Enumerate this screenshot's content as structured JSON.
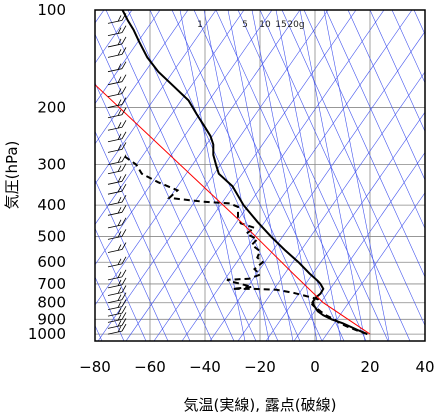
{
  "chart_data": {
    "type": "line",
    "title": "",
    "xlabel": "気温(実線), 露点(破線)",
    "ylabel": "気圧(hPa)",
    "xlim": [
      -80,
      40
    ],
    "ylim": [
      1050,
      100
    ],
    "y_scale": "log",
    "x_ticks": [
      -80,
      -60,
      -40,
      -20,
      0,
      20,
      40
    ],
    "x_tick_labels": [
      "−80",
      "−60",
      "−40",
      "−20",
      "0",
      "20",
      "40"
    ],
    "y_ticks": [
      100,
      200,
      300,
      400,
      500,
      600,
      700,
      800,
      900,
      1000
    ],
    "y_tick_labels": [
      "100",
      "200",
      "300",
      "400",
      "500",
      "600",
      "700",
      "800",
      "900",
      "1000"
    ],
    "mixing_ratio_labels": [
      "1",
      "5",
      "10",
      "15",
      "20g"
    ],
    "mixing_ratio_values": [
      1,
      5,
      10,
      15,
      20
    ],
    "grid": true,
    "series": [
      {
        "style": "solid",
        "color": "#000000",
        "points": [
          [
            19,
            1000
          ],
          [
            16,
            975
          ],
          [
            13,
            950
          ],
          [
            10,
            925
          ],
          [
            6,
            900
          ],
          [
            3,
            875
          ],
          [
            1,
            850
          ],
          [
            0,
            825
          ],
          [
            -1,
            800
          ],
          [
            0,
            775
          ],
          [
            2,
            750
          ],
          [
            3,
            725
          ],
          [
            2,
            700
          ],
          [
            1,
            685
          ],
          [
            -2,
            650
          ],
          [
            -6,
            600
          ],
          [
            -11,
            550
          ],
          [
            -16,
            500
          ],
          [
            -21,
            450
          ],
          [
            -26,
            400
          ],
          [
            -30,
            350
          ],
          [
            -35,
            320
          ],
          [
            -36,
            300
          ],
          [
            -37,
            280
          ],
          [
            -37,
            260
          ],
          [
            -38,
            245
          ],
          [
            -40,
            230
          ],
          [
            -43,
            210
          ],
          [
            -46,
            190
          ],
          [
            -52,
            170
          ],
          [
            -57,
            155
          ],
          [
            -61,
            140
          ],
          [
            -64,
            125
          ],
          [
            -66,
            115
          ],
          [
            -68,
            108
          ],
          [
            -70,
            100
          ]
        ]
      },
      {
        "style": "dashed",
        "color": "#000000",
        "points": [
          [
            19,
            1000
          ],
          [
            16,
            980
          ],
          [
            12,
            950
          ],
          [
            9,
            925
          ],
          [
            7,
            900
          ],
          [
            4,
            875
          ],
          [
            2,
            850
          ],
          [
            0,
            825
          ],
          [
            -1,
            810
          ],
          [
            0,
            790
          ],
          [
            1,
            780
          ],
          [
            -4,
            760
          ],
          [
            -8,
            745
          ],
          [
            -14,
            730
          ],
          [
            -22,
            725
          ],
          [
            -30,
            725
          ],
          [
            -23,
            715
          ],
          [
            -27,
            700
          ],
          [
            -30,
            690
          ],
          [
            -32,
            680
          ],
          [
            -24,
            675
          ],
          [
            -20,
            655
          ],
          [
            -22,
            630
          ],
          [
            -19,
            600
          ],
          [
            -21,
            580
          ],
          [
            -20,
            555
          ],
          [
            -23,
            530
          ],
          [
            -21,
            510
          ],
          [
            -25,
            490
          ],
          [
            -22,
            470
          ],
          [
            -27,
            455
          ],
          [
            -28,
            435
          ],
          [
            -28,
            405
          ],
          [
            -31,
            395
          ],
          [
            -41,
            390
          ],
          [
            -53,
            380
          ],
          [
            -50,
            360
          ],
          [
            -57,
            340
          ],
          [
            -63,
            320
          ],
          [
            -65,
            300
          ],
          [
            -70,
            280
          ]
        ]
      },
      {
        "style": "solid",
        "color": "#ff0000",
        "points": [
          [
            20,
            1000
          ],
          [
            3,
            800
          ],
          [
            -8,
            650
          ],
          [
            -27,
            450
          ],
          [
            -80,
            170
          ]
        ]
      }
    ]
  }
}
